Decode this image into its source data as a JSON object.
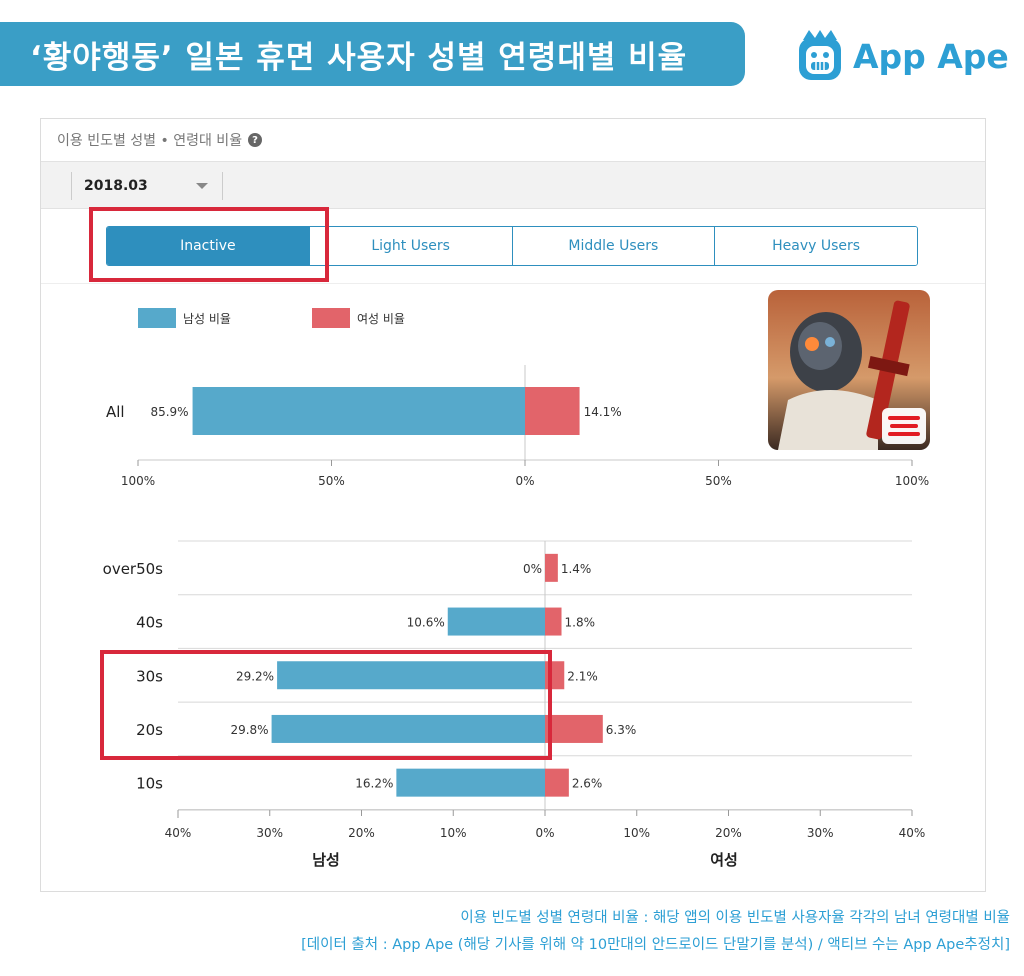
{
  "page_title": "‘황야행동’ 일본 휴면 사용자 성별 연령대별 비율",
  "logo": {
    "text": "App Ape"
  },
  "panel": {
    "header": "이용 빈도별 성별 • 연령대 비율",
    "period": "2018.03",
    "tabs": [
      "Inactive",
      "Light Users",
      "Middle Users",
      "Heavy Users"
    ],
    "active_tab": "Inactive"
  },
  "colors": {
    "male": "#56a9cb",
    "female": "#e2646a",
    "brand": "#3a9ec6",
    "highlight": "#d8283b"
  },
  "chart_data": [
    {
      "type": "bar",
      "orientation": "horizontal-diverging",
      "legend": [
        "남성 비율",
        "여성 비율"
      ],
      "categories": [
        "All"
      ],
      "series": [
        {
          "name": "남성 비율",
          "values": [
            85.9
          ]
        },
        {
          "name": "여성 비율",
          "values": [
            14.1
          ]
        }
      ],
      "xlim": [
        -100,
        100
      ],
      "xticks": [
        "100%",
        "50%",
        "0%",
        "50%",
        "100%"
      ],
      "data_labels": {
        "male": [
          "85.9%"
        ],
        "female": [
          "14.1%"
        ]
      }
    },
    {
      "type": "bar",
      "orientation": "horizontal-diverging",
      "categories": [
        "over50s",
        "40s",
        "30s",
        "20s",
        "10s"
      ],
      "series": [
        {
          "name": "남성",
          "values": [
            0,
            10.6,
            29.2,
            29.8,
            16.2
          ]
        },
        {
          "name": "여성",
          "values": [
            1.4,
            1.8,
            2.1,
            6.3,
            2.6
          ]
        }
      ],
      "xlim": [
        -40,
        40
      ],
      "xticks": [
        "40%",
        "30%",
        "20%",
        "10%",
        "0%",
        "10%",
        "20%",
        "30%",
        "40%"
      ],
      "data_labels": {
        "male": [
          "0%",
          "10.6%",
          "29.2%",
          "29.8%",
          "16.2%"
        ],
        "female": [
          "1.4%",
          "1.8%",
          "2.1%",
          "6.3%",
          "2.6%"
        ]
      },
      "xlabel_left": "남성",
      "xlabel_right": "여성"
    }
  ],
  "footnotes": [
    "이용 빈도별 성별 연령대 비율 : 해당 앱의 이용 빈도별 사용자율 각각의 남녀 연령대별 비율",
    "[데이터 출처 : App Ape (해당 기사를 위해 약 10만대의 안드로이드 단말기를 분석) / 액티브 수는 App Ape추정치]"
  ]
}
